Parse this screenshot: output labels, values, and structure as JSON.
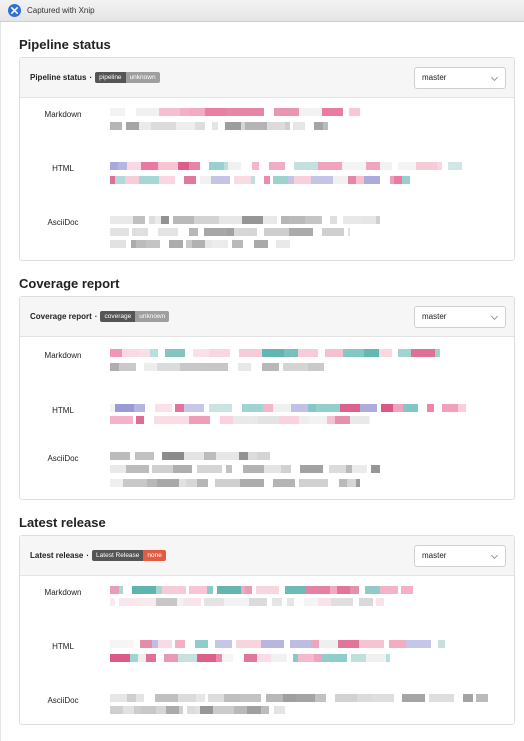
{
  "titlebar": {
    "title": "Captured with Xnip",
    "icon": "xnip-icon"
  },
  "sections": [
    {
      "title": "Pipeline status",
      "card_label": "Pipeline status",
      "separator": "·",
      "badge_left": "pipeline",
      "badge_right": "unknown",
      "badge_right_color": "#9f9f9f",
      "branch": "master",
      "rows": [
        {
          "label": "Markdown"
        },
        {
          "label": "HTML"
        },
        {
          "label": "AsciiDoc"
        }
      ]
    },
    {
      "title": "Coverage report",
      "card_label": "Coverage report",
      "separator": "·",
      "badge_left": "coverage",
      "badge_right": "unknown",
      "badge_right_color": "#9f9f9f",
      "branch": "master",
      "rows": [
        {
          "label": "Markdown"
        },
        {
          "label": "HTML"
        },
        {
          "label": "AsciiDoc"
        }
      ]
    },
    {
      "title": "Latest release",
      "card_label": "Latest release",
      "separator": "·",
      "badge_left": "Latest Release",
      "badge_right": "none",
      "badge_right_color": "#e05d44",
      "branch": "master",
      "rows": [
        {
          "label": "Markdown"
        },
        {
          "label": "HTML"
        },
        {
          "label": "AsciiDoc"
        }
      ]
    }
  ]
}
